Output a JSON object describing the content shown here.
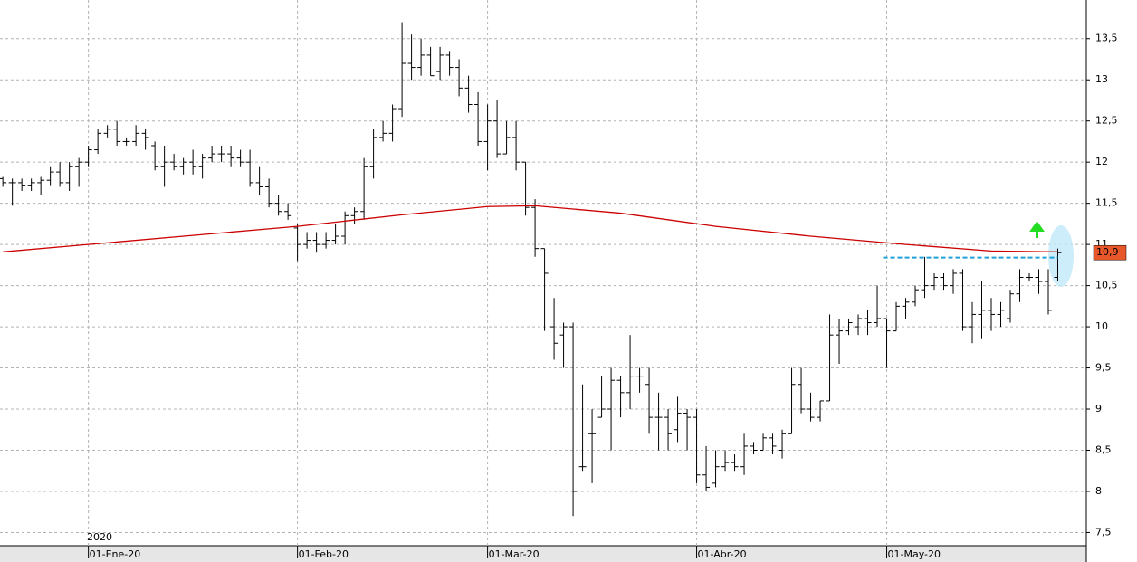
{
  "chart_data": {
    "type": "ohlc",
    "year_label": "2020",
    "color": "#000000",
    "open": [
      11.8,
      11.75,
      11.75,
      11.72,
      11.75,
      11.78,
      11.88,
      11.75,
      11.95,
      12.0,
      12.15,
      12.35,
      12.4,
      12.25,
      12.25,
      12.35,
      12.2,
      11.95,
      12.0,
      11.95,
      12.0,
      11.95,
      12.05,
      12.1,
      12.1,
      12.05,
      12.0,
      11.75,
      11.7,
      11.5,
      11.4,
      11.2,
      11.0,
      11.05,
      11.0,
      11.05,
      11.1,
      11.35,
      11.4,
      11.95,
      12.3,
      12.35,
      12.65,
      13.2,
      13.15,
      13.3,
      13.1,
      13.3,
      13.15,
      12.9,
      12.7,
      12.25,
      12.5,
      12.1,
      12.3,
      12.0,
      11.45,
      10.95,
      10.0,
      9.9,
      10.0,
      8.3,
      8.7,
      8.9,
      9.0,
      9.35,
      9.2,
      9.4,
      9.3,
      8.9,
      8.9,
      8.75,
      8.95,
      8.9,
      8.2,
      8.1,
      8.3,
      8.35,
      8.3,
      8.55,
      8.5,
      8.65,
      8.5,
      8.7,
      9.3,
      9.0,
      8.9,
      9.1,
      9.9,
      9.95,
      10.0,
      10.1,
      10.05,
      10.1,
      9.95,
      10.25,
      10.3,
      10.45,
      10.5,
      10.6,
      10.5,
      10.65,
      10.0,
      10.15,
      10.2,
      10.15,
      10.1,
      10.4,
      10.6,
      10.6,
      10.55,
      10.6
    ],
    "high": [
      11.82,
      11.8,
      11.8,
      11.8,
      11.82,
      11.95,
      12.0,
      12.0,
      12.05,
      12.2,
      12.4,
      12.45,
      12.5,
      12.3,
      12.45,
      12.4,
      12.25,
      12.2,
      12.1,
      12.05,
      12.15,
      12.1,
      12.2,
      12.2,
      12.2,
      12.15,
      12.15,
      11.95,
      11.8,
      11.6,
      11.5,
      11.25,
      11.15,
      11.15,
      11.15,
      11.25,
      11.4,
      11.45,
      12.05,
      12.4,
      12.5,
      12.7,
      13.7,
      13.55,
      13.5,
      13.4,
      13.4,
      13.35,
      13.25,
      13.05,
      12.85,
      12.7,
      12.75,
      12.5,
      12.5,
      12.0,
      11.55,
      10.95,
      10.35,
      10.05,
      10.05,
      9.3,
      9.0,
      9.4,
      9.5,
      9.4,
      9.9,
      9.5,
      9.5,
      9.2,
      9.0,
      9.15,
      9.0,
      9.0,
      8.55,
      8.5,
      8.5,
      8.45,
      8.7,
      8.6,
      8.7,
      8.7,
      8.75,
      9.5,
      9.5,
      9.2,
      9.1,
      10.15,
      10.1,
      10.1,
      10.15,
      10.2,
      10.5,
      10.1,
      10.3,
      10.35,
      10.5,
      10.85,
      10.65,
      10.65,
      10.7,
      10.7,
      10.3,
      10.55,
      10.35,
      10.3,
      10.45,
      10.7,
      10.65,
      10.7,
      10.7,
      10.95
    ],
    "low": [
      11.7,
      11.47,
      11.65,
      11.65,
      11.6,
      11.72,
      11.7,
      11.65,
      11.7,
      11.95,
      12.1,
      12.3,
      12.2,
      12.2,
      12.2,
      12.15,
      11.9,
      11.7,
      11.9,
      11.85,
      11.85,
      11.8,
      12.0,
      12.0,
      11.95,
      11.95,
      11.7,
      11.6,
      11.45,
      11.35,
      11.3,
      10.8,
      10.95,
      10.9,
      10.95,
      11.0,
      11.0,
      11.25,
      11.3,
      11.8,
      12.25,
      12.25,
      12.55,
      13.0,
      13.05,
      13.05,
      13.0,
      13.05,
      12.8,
      12.6,
      12.2,
      11.9,
      12.05,
      12.1,
      11.9,
      11.35,
      10.85,
      9.95,
      9.6,
      9.5,
      7.7,
      8.25,
      8.1,
      8.9,
      8.5,
      8.9,
      9.0,
      9.2,
      8.7,
      8.5,
      8.5,
      8.6,
      8.5,
      8.1,
      8.0,
      8.05,
      8.25,
      8.25,
      8.2,
      8.45,
      8.5,
      8.45,
      8.4,
      8.7,
      8.95,
      8.85,
      8.85,
      9.1,
      9.55,
      9.9,
      9.9,
      9.9,
      10.0,
      9.5,
      9.95,
      10.1,
      10.25,
      10.35,
      10.45,
      10.45,
      10.4,
      9.95,
      9.8,
      9.85,
      9.95,
      10.0,
      10.05,
      10.3,
      10.55,
      10.4,
      10.15,
      10.55
    ],
    "close": [
      11.75,
      11.75,
      11.72,
      11.75,
      11.78,
      11.88,
      11.75,
      11.95,
      12.0,
      12.15,
      12.35,
      12.4,
      12.25,
      12.25,
      12.35,
      12.3,
      11.95,
      12.0,
      11.95,
      12.0,
      11.95,
      12.05,
      12.1,
      12.1,
      12.05,
      12.0,
      11.75,
      11.7,
      11.5,
      11.4,
      11.35,
      11.0,
      11.05,
      11.0,
      11.05,
      11.1,
      11.35,
      11.4,
      11.95,
      12.3,
      12.35,
      12.65,
      13.2,
      13.15,
      13.3,
      13.05,
      13.3,
      13.15,
      12.9,
      12.7,
      12.25,
      12.5,
      12.1,
      12.3,
      12.0,
      11.45,
      10.95,
      10.65,
      9.8,
      10.0,
      8.0,
      8.3,
      8.7,
      9.0,
      9.35,
      9.2,
      9.4,
      9.4,
      8.9,
      8.9,
      8.7,
      8.95,
      8.9,
      8.2,
      8.05,
      8.3,
      8.35,
      8.3,
      8.55,
      8.5,
      8.65,
      8.55,
      8.7,
      9.3,
      9.0,
      8.9,
      9.1,
      9.9,
      9.95,
      10.05,
      10.1,
      10.05,
      10.1,
      9.95,
      10.25,
      10.3,
      10.45,
      10.5,
      10.6,
      10.5,
      10.65,
      10.0,
      10.15,
      10.2,
      10.15,
      10.2,
      10.4,
      10.6,
      10.6,
      10.55,
      10.2,
      10.9
    ],
    "moving_average": {
      "color": "#cc0000",
      "x": [
        0,
        9,
        20,
        31,
        42,
        51,
        56,
        65,
        75,
        85,
        95,
        104,
        111
      ],
      "values": [
        10.91,
        11.0,
        11.11,
        11.22,
        11.36,
        11.46,
        11.47,
        11.38,
        11.22,
        11.1,
        11.0,
        10.92,
        10.91
      ]
    },
    "level": {
      "color": "#1ea0d8",
      "value": 10.84,
      "x": [
        93,
        111
      ]
    },
    "price_label": {
      "value": 10.9,
      "label": "10,9",
      "color": "#e8572a"
    },
    "xlim": [
      -0.3,
      114
    ],
    "xticks": [
      {
        "value": 9,
        "label": "01-Ene-20"
      },
      {
        "value": 31,
        "label": "01-Feb-20"
      },
      {
        "value": 51,
        "label": "01-Mar-20"
      },
      {
        "value": 73,
        "label": "01-Abr-20"
      },
      {
        "value": 93,
        "label": "01-May-20"
      }
    ],
    "ylim": [
      7.34,
      13.97
    ],
    "yticks": [
      {
        "value": 7.5,
        "label": "7,5"
      },
      8,
      {
        "value": 8.5,
        "label": "8,5"
      },
      9,
      {
        "value": 9.5,
        "label": "9,5"
      },
      10,
      {
        "value": 10.5,
        "label": "10,5"
      },
      11,
      {
        "value": 11.5,
        "label": "11,5"
      },
      12,
      {
        "value": 12.5,
        "label": "12,5"
      },
      13,
      {
        "value": 13.5,
        "label": "13,5"
      }
    ],
    "grid": true
  }
}
